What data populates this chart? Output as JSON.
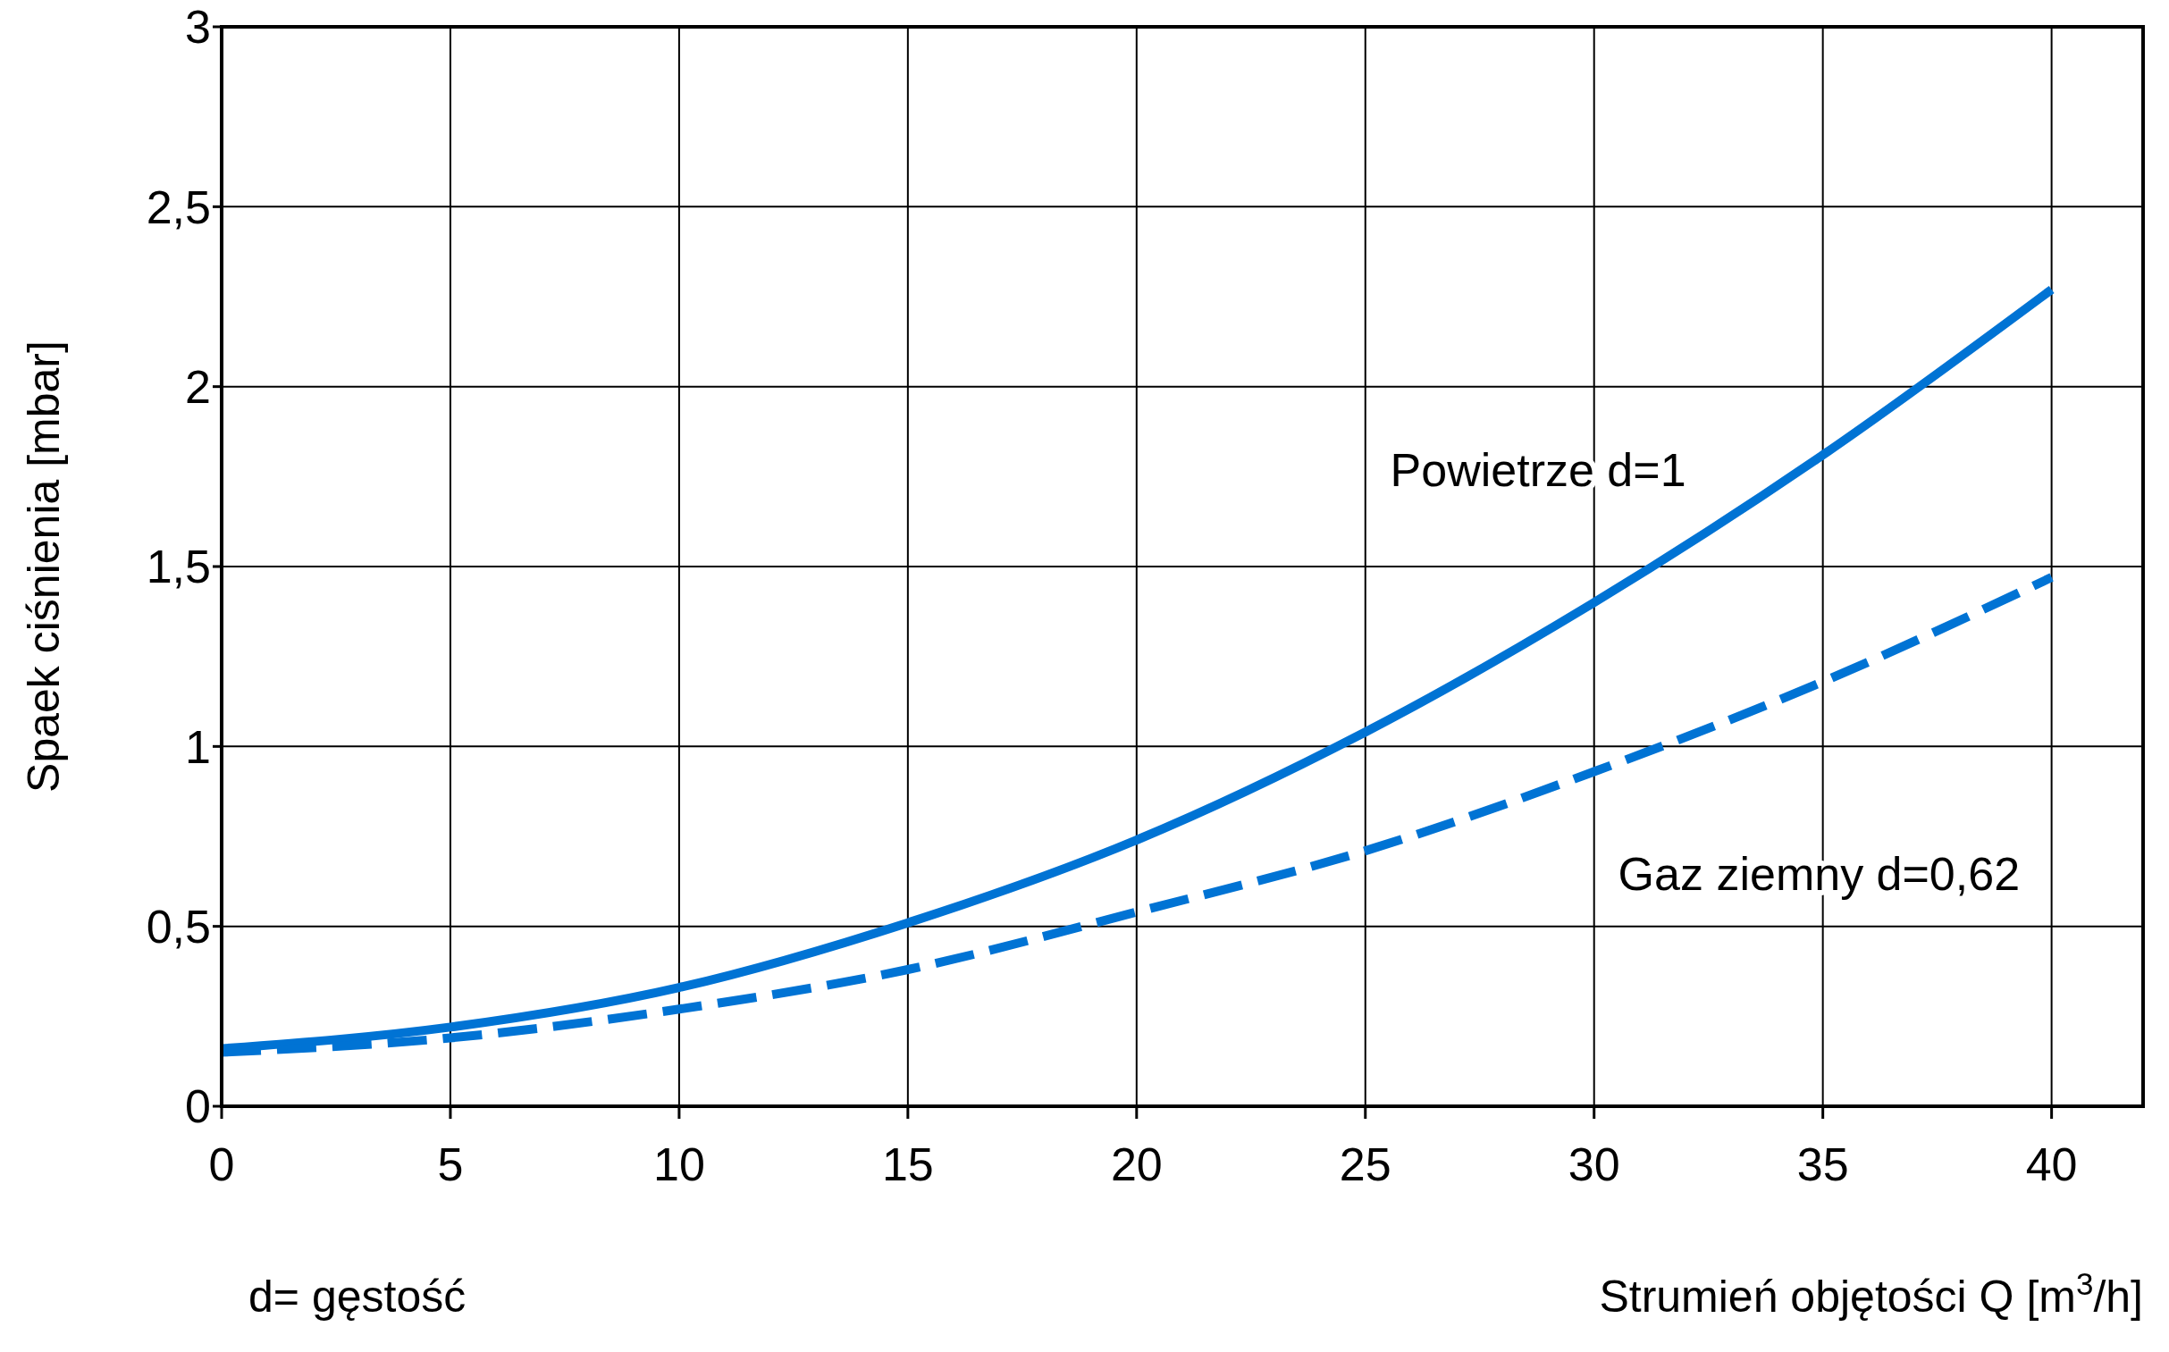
{
  "chart_data": {
    "type": "line",
    "xlabel": "Strumień objętości Q [m$^{3}$/h]",
    "ylabel": "Spaek ciśnienia  [mbar]",
    "x": [
      0,
      5,
      10,
      15,
      20,
      25,
      30,
      35,
      40
    ],
    "series": [
      {
        "name": "Powietrze d=1",
        "color": "#0073d4",
        "line_style": "solid",
        "values": [
          0.16,
          0.22,
          0.33,
          0.51,
          0.74,
          1.04,
          1.4,
          1.81,
          2.27
        ]
      },
      {
        "name": "Gaz ziemny d=0,62",
        "color": "#0073d4",
        "line_style": "dashed",
        "values": [
          0.15,
          0.19,
          0.27,
          0.38,
          0.54,
          0.71,
          0.93,
          1.18,
          1.47
        ]
      }
    ],
    "xlim": [
      0,
      42
    ],
    "xticks": [
      0,
      5,
      10,
      15,
      20,
      25,
      30,
      35,
      40
    ],
    "ylim": [
      0,
      3
    ],
    "yticks": [
      0,
      {
        "value": 0.5,
        "label": "0,5"
      },
      1,
      {
        "value": 1.5,
        "label": "1,5"
      },
      2,
      {
        "value": 2.5,
        "label": "2,5"
      },
      3
    ],
    "grid": true,
    "legend": false,
    "marker": "none",
    "annotations": [
      "d= gęstość"
    ]
  }
}
